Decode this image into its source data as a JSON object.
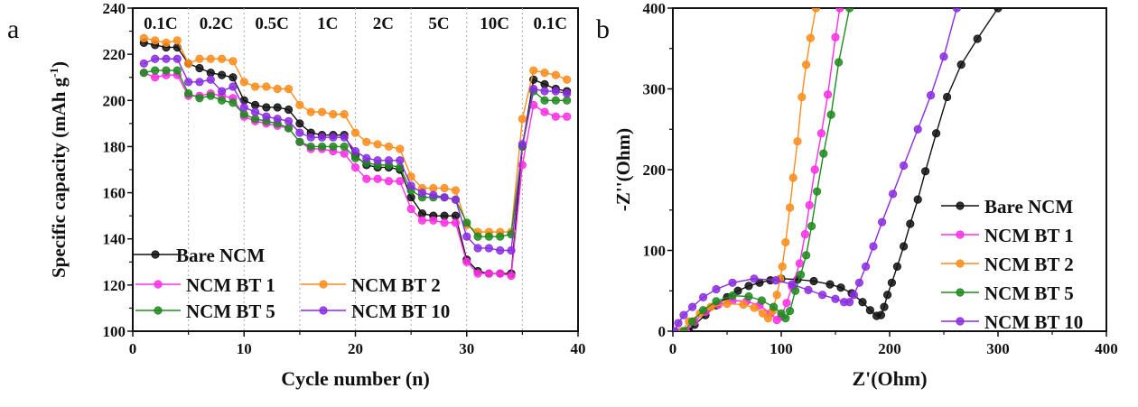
{
  "chart_data": [
    {
      "panel_label": "a",
      "type": "line",
      "xlabel": "Cycle number (n)",
      "ylabel": "Specific capacity (mAh g",
      "ylabel_sup": "-1",
      "ylabel_close": ")",
      "xlim": [
        0,
        40
      ],
      "ylim": [
        100,
        240
      ],
      "xticks": [
        0,
        10,
        20,
        30,
        40
      ],
      "yticks": [
        100,
        120,
        140,
        160,
        180,
        200,
        220,
        240
      ],
      "rate_dividers": [
        5,
        10,
        15,
        20,
        25,
        30,
        35
      ],
      "rate_labels": [
        "0.1C",
        "0.2C",
        "0.5C",
        "1C",
        "2C",
        "5C",
        "10C",
        "0.1C"
      ],
      "legend_position": "bottom-left",
      "x": [
        1,
        2,
        3,
        4,
        5,
        6,
        7,
        8,
        9,
        10,
        11,
        12,
        13,
        14,
        15,
        16,
        17,
        18,
        19,
        20,
        21,
        22,
        23,
        24,
        25,
        26,
        27,
        28,
        29,
        30,
        31,
        32,
        33,
        34,
        35,
        36,
        37,
        38,
        39
      ],
      "series": [
        {
          "name": "Bare NCM",
          "color": "#111111",
          "values": [
            225,
            224,
            223,
            223,
            216,
            214,
            212,
            211,
            210,
            200,
            198,
            197,
            197,
            196,
            190,
            186,
            185,
            185,
            185,
            176,
            172,
            171,
            171,
            170,
            158,
            151,
            150,
            150,
            150,
            131,
            126,
            125,
            125,
            125,
            180,
            209,
            207,
            205,
            204
          ]
        },
        {
          "name": "NCM BT 1",
          "color": "#ff2ee6",
          "values": [
            212,
            210,
            211,
            211,
            202,
            202,
            203,
            202,
            201,
            193,
            191,
            190,
            189,
            188,
            182,
            179,
            179,
            178,
            177,
            171,
            166,
            166,
            165,
            165,
            153,
            148,
            148,
            147,
            147,
            130,
            125,
            125,
            125,
            124,
            172,
            198,
            195,
            193,
            193
          ]
        },
        {
          "name": "NCM BT 2",
          "color": "#ff8c1a",
          "values": [
            227,
            226,
            225,
            226,
            216,
            218,
            218,
            218,
            217,
            208,
            206,
            206,
            205,
            205,
            198,
            195,
            195,
            194,
            194,
            186,
            182,
            181,
            180,
            179,
            167,
            162,
            162,
            162,
            161,
            146,
            143,
            143,
            143,
            143,
            192,
            213,
            212,
            211,
            209
          ]
        },
        {
          "name": "NCM BT 5",
          "color": "#1f8a1f",
          "values": [
            212,
            213,
            213,
            213,
            203,
            201,
            202,
            200,
            199,
            194,
            192,
            191,
            190,
            188,
            182,
            180,
            180,
            180,
            180,
            175,
            173,
            172,
            172,
            171,
            161,
            158,
            158,
            158,
            157,
            147,
            141,
            141,
            141,
            142,
            180,
            204,
            200,
            200,
            200
          ]
        },
        {
          "name": "NCM BT 10",
          "color": "#8a2be2",
          "values": [
            216,
            218,
            218,
            218,
            208,
            208,
            209,
            204,
            206,
            197,
            195,
            193,
            192,
            191,
            186,
            184,
            184,
            184,
            184,
            178,
            175,
            174,
            174,
            174,
            163,
            160,
            159,
            158,
            157,
            141,
            136,
            136,
            135,
            135,
            181,
            205,
            204,
            204,
            203
          ]
        }
      ]
    },
    {
      "panel_label": "b",
      "type": "scatter",
      "xlabel": "Z'(Ohm)",
      "ylabel": "-Z''(Ohm)",
      "xlim": [
        0,
        400
      ],
      "ylim": [
        0,
        400
      ],
      "xticks": [
        0,
        100,
        200,
        300,
        400
      ],
      "yticks": [
        0,
        100,
        200,
        300,
        400
      ],
      "legend_position": "bottom-right",
      "series": [
        {
          "name": "Bare NCM",
          "color": "#111111",
          "points": [
            [
              15,
              0
            ],
            [
              20,
              8
            ],
            [
              30,
              20
            ],
            [
              40,
              32
            ],
            [
              50,
              42
            ],
            [
              60,
              50
            ],
            [
              70,
              56
            ],
            [
              80,
              60
            ],
            [
              90,
              63
            ],
            [
              100,
              65
            ],
            [
              115,
              64
            ],
            [
              130,
              62
            ],
            [
              145,
              58
            ],
            [
              155,
              54
            ],
            [
              165,
              47
            ],
            [
              175,
              36
            ],
            [
              182,
              26
            ],
            [
              188,
              19
            ],
            [
              192,
              20
            ],
            [
              195,
              30
            ],
            [
              198,
              45
            ],
            [
              202,
              60
            ],
            [
              207,
              80
            ],
            [
              213,
              105
            ],
            [
              219,
              133
            ],
            [
              226,
              163
            ],
            [
              233,
              198
            ],
            [
              243,
              245
            ],
            [
              253,
              290
            ],
            [
              266,
              330
            ],
            [
              281,
              362
            ],
            [
              300,
              400
            ]
          ]
        },
        {
          "name": "NCM BT 1",
          "color": "#ff2ee6",
          "points": [
            [
              12,
              0
            ],
            [
              20,
              12
            ],
            [
              30,
              24
            ],
            [
              42,
              33
            ],
            [
              55,
              38
            ],
            [
              68,
              37
            ],
            [
              80,
              32
            ],
            [
              90,
              22
            ],
            [
              96,
              14
            ],
            [
              100,
              18
            ],
            [
              105,
              35
            ],
            [
              110,
              55
            ],
            [
              117,
              84
            ],
            [
              122,
              120
            ],
            [
              126,
              156
            ],
            [
              131,
              200
            ],
            [
              137,
              245
            ],
            [
              143,
              293
            ],
            [
              150,
              364
            ],
            [
              154,
              400
            ]
          ]
        },
        {
          "name": "NCM BT 2",
          "color": "#ff8c1a",
          "points": [
            [
              8,
              0
            ],
            [
              15,
              12
            ],
            [
              25,
              22
            ],
            [
              35,
              30
            ],
            [
              50,
              34
            ],
            [
              65,
              33
            ],
            [
              75,
              29
            ],
            [
              83,
              22
            ],
            [
              88,
              16
            ],
            [
              92,
              25
            ],
            [
              96,
              45
            ],
            [
              99,
              65
            ],
            [
              101,
              80
            ],
            [
              104,
              110
            ],
            [
              108,
              153
            ],
            [
              111,
              190
            ],
            [
              115,
              235
            ],
            [
              119,
              290
            ],
            [
              123,
              330
            ],
            [
              127,
              363
            ],
            [
              132,
              400
            ]
          ]
        },
        {
          "name": "NCM BT 5",
          "color": "#1f8a1f",
          "points": [
            [
              10,
              0
            ],
            [
              18,
              12
            ],
            [
              28,
              26
            ],
            [
              40,
              37
            ],
            [
              55,
              44
            ],
            [
              70,
              43
            ],
            [
              82,
              38
            ],
            [
              93,
              30
            ],
            [
              100,
              22
            ],
            [
              104,
              16
            ],
            [
              108,
              25
            ],
            [
              113,
              50
            ],
            [
              118,
              70
            ],
            [
              123,
              94
            ],
            [
              128,
              130
            ],
            [
              133,
              173
            ],
            [
              139,
              220
            ],
            [
              146,
              268
            ],
            [
              153,
              333
            ],
            [
              163,
              400
            ]
          ]
        },
        {
          "name": "NCM BT 10",
          "color": "#8a2be2",
          "points": [
            [
              2,
              0
            ],
            [
              5,
              10
            ],
            [
              10,
              20
            ],
            [
              18,
              30
            ],
            [
              28,
              42
            ],
            [
              40,
              52
            ],
            [
              55,
              60
            ],
            [
              75,
              65
            ],
            [
              95,
              63
            ],
            [
              110,
              58
            ],
            [
              125,
              51
            ],
            [
              138,
              45
            ],
            [
              150,
              40
            ],
            [
              158,
              36
            ],
            [
              163,
              36
            ],
            [
              167,
              45
            ],
            [
              172,
              60
            ],
            [
              178,
              80
            ],
            [
              185,
              105
            ],
            [
              193,
              135
            ],
            [
              203,
              170
            ],
            [
              213,
              205
            ],
            [
              226,
              250
            ],
            [
              238,
              292
            ],
            [
              250,
              340
            ],
            [
              262,
              400
            ]
          ]
        }
      ]
    }
  ]
}
